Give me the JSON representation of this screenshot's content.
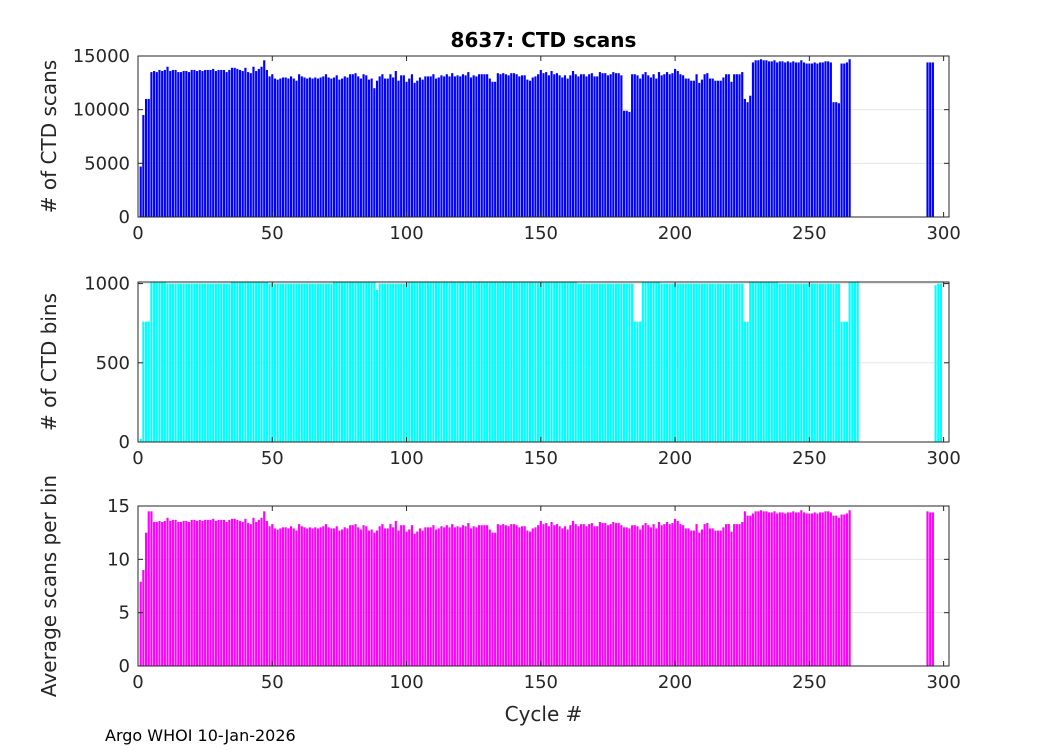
{
  "footer": "Argo WHOI 10-Jan-2026",
  "chart_data": [
    {
      "type": "bar",
      "title": "8637: CTD scans",
      "xlabel": "",
      "ylabel": "# of CTD scans",
      "xlim": [
        0,
        302
      ],
      "ylim": [
        0,
        15000
      ],
      "xticks": [
        0,
        50,
        100,
        150,
        200,
        250,
        300
      ],
      "yticks": [
        0,
        5000,
        10000,
        15000
      ],
      "color": "#0000ff",
      "grid": true,
      "cycles_start": 1,
      "values": [
        4700,
        9500,
        11000,
        11000,
        13500,
        13600,
        13500,
        13700,
        13600,
        13700,
        14000,
        13600,
        13700,
        13700,
        13500,
        13500,
        13600,
        13600,
        13500,
        13700,
        13700,
        13600,
        13700,
        13600,
        13700,
        13700,
        13700,
        13800,
        13600,
        13700,
        13700,
        13700,
        13500,
        13700,
        13900,
        13900,
        13800,
        13700,
        13600,
        13900,
        13500,
        13400,
        14000,
        13600,
        13800,
        14000,
        14600,
        13700,
        13100,
        13300,
        12900,
        12800,
        12900,
        13000,
        13000,
        12900,
        13100,
        12900,
        12700,
        13300,
        13100,
        13000,
        12900,
        13000,
        12900,
        13000,
        12900,
        13000,
        13100,
        13300,
        13000,
        12900,
        13000,
        13200,
        12800,
        12900,
        13100,
        13000,
        13300,
        13300,
        13400,
        13100,
        12900,
        13300,
        13200,
        12800,
        12900,
        12000,
        12700,
        13100,
        13300,
        12900,
        12900,
        13300,
        13000,
        13600,
        12700,
        13200,
        13200,
        12600,
        12900,
        13300,
        12500,
        12700,
        13000,
        12800,
        13100,
        13100,
        13100,
        13300,
        12900,
        13000,
        13200,
        13100,
        13300,
        13100,
        13400,
        13100,
        13200,
        13100,
        13300,
        13200,
        13500,
        13000,
        13200,
        13100,
        13300,
        13300,
        13300,
        13300,
        12900,
        12600,
        12600,
        13400,
        13300,
        13400,
        13300,
        13200,
        13400,
        13400,
        13300,
        13100,
        13200,
        13200,
        12800,
        12700,
        13000,
        13100,
        13300,
        13700,
        13400,
        13500,
        13200,
        13600,
        13300,
        13400,
        13200,
        13000,
        13200,
        12900,
        13200,
        13600,
        13300,
        13100,
        13300,
        13300,
        13100,
        13300,
        13400,
        13100,
        13100,
        13500,
        13400,
        13400,
        13200,
        13300,
        13500,
        13400,
        13400,
        13200,
        9900,
        9900,
        9800,
        13300,
        13300,
        13200,
        12900,
        13300,
        13500,
        13200,
        13000,
        13300,
        12900,
        13500,
        13200,
        13300,
        13500,
        13300,
        13400,
        13800,
        13600,
        13300,
        13200,
        12900,
        12900,
        12700,
        12700,
        13300,
        12500,
        12800,
        13300,
        13400,
        12900,
        12900,
        12700,
        12700,
        12700,
        13000,
        13300,
        13300,
        12600,
        13300,
        13300,
        13300,
        13500,
        11000,
        10700,
        11300,
        14400,
        14600,
        14600,
        14700,
        14600,
        14600,
        14500,
        14500,
        14600,
        14400,
        14500,
        14500,
        14400,
        14500,
        14400,
        14500,
        14400,
        14400,
        14600,
        14400,
        14300,
        14300,
        14300,
        14400,
        14300,
        14400,
        14400,
        14500,
        14500,
        14400,
        10700,
        10700,
        10600,
        14300,
        14300,
        14400,
        14700,
        null,
        null,
        null,
        null,
        null,
        null,
        null,
        null,
        null,
        null,
        null,
        null,
        null,
        null,
        null,
        null,
        null,
        null,
        null,
        null,
        null,
        null,
        null,
        null,
        null,
        null,
        null,
        null,
        14400,
        14400,
        14400
      ]
    },
    {
      "type": "bar",
      "title": "",
      "xlabel": "",
      "ylabel": "# of CTD bins",
      "xlim": [
        0,
        302
      ],
      "ylim": [
        0,
        1010
      ],
      "xticks": [
        0,
        50,
        100,
        150,
        200,
        250,
        300
      ],
      "yticks": [
        0,
        500,
        1000
      ],
      "color": "#00ffff",
      "grid": true,
      "cycles_start": 1,
      "values": [
        20,
        760,
        760,
        760,
        1010,
        1010,
        1010,
        1010,
        1010,
        1010,
        1000,
        1000,
        1000,
        1000,
        1000,
        1000,
        1000,
        1000,
        1000,
        1000,
        1000,
        1000,
        1000,
        1000,
        1000,
        1000,
        1000,
        1000,
        1000,
        1000,
        1000,
        1000,
        1000,
        1000,
        1010,
        1010,
        1010,
        1010,
        1010,
        1010,
        1010,
        1010,
        1010,
        1010,
        1010,
        1010,
        1010,
        1010,
        1000,
        1000,
        1000,
        1000,
        1000,
        1000,
        1000,
        1000,
        1000,
        1000,
        1000,
        1000,
        1000,
        1000,
        1000,
        1000,
        1000,
        1000,
        1000,
        1000,
        1000,
        1000,
        1000,
        1000,
        1010,
        1010,
        1010,
        1010,
        1010,
        1010,
        1010,
        1010,
        1010,
        1010,
        1010,
        1010,
        1010,
        1010,
        1010,
        1010,
        960,
        1000,
        1000,
        1000,
        1000,
        1000,
        1000,
        1000,
        1000,
        1000,
        1000,
        1000,
        1010,
        1010,
        1010,
        1010,
        1010,
        1010,
        1010,
        1010,
        1010,
        1010,
        1010,
        1010,
        1010,
        1010,
        1010,
        1010,
        1010,
        1010,
        1010,
        1010,
        1010,
        1010,
        1010,
        1010,
        1010,
        1010,
        1010,
        1010,
        1010,
        1010,
        1010,
        1010,
        1010,
        1010,
        1010,
        1010,
        1010,
        1010,
        1010,
        1010,
        1010,
        1010,
        1010,
        1010,
        1010,
        1010,
        1010,
        1010,
        1010,
        1010,
        1010,
        1010,
        1010,
        1010,
        1010,
        1010,
        1010,
        1010,
        1010,
        1010,
        1010,
        1010,
        1010,
        1000,
        1000,
        1000,
        1000,
        1000,
        1000,
        1000,
        1000,
        1000,
        1000,
        1000,
        1000,
        1000,
        1000,
        1000,
        1000,
        1000,
        1000,
        1000,
        1000,
        1000,
        760,
        760,
        760,
        1010,
        1010,
        1010,
        1010,
        1010,
        1010,
        1010,
        1000,
        1000,
        1000,
        1000,
        1000,
        1000,
        1000,
        1000,
        1000,
        1000,
        1000,
        1000,
        1000,
        1000,
        1000,
        1000,
        1000,
        1000,
        1000,
        1000,
        1000,
        1000,
        1000,
        1000,
        1000,
        1000,
        1000,
        1000,
        1000,
        1000,
        1000,
        760,
        760,
        1010,
        1010,
        1010,
        1010,
        1010,
        1010,
        1010,
        1010,
        1010,
        1010,
        1010,
        1000,
        1000,
        1000,
        1000,
        1000,
        1000,
        1000,
        1000,
        1000,
        1000,
        1000,
        1000,
        1000,
        1000,
        1000,
        1000,
        1000,
        1000,
        1000,
        1000,
        1000,
        1000,
        1000,
        760,
        760,
        760,
        1010,
        1010,
        1010,
        1010,
        null,
        null,
        null,
        null,
        null,
        null,
        null,
        null,
        null,
        null,
        null,
        null,
        null,
        null,
        null,
        null,
        null,
        null,
        null,
        null,
        null,
        null,
        null,
        null,
        null,
        null,
        null,
        null,
        990,
        1000,
        1000
      ]
    },
    {
      "type": "bar",
      "title": "",
      "xlabel": "Cycle #",
      "ylabel": "Average scans per bin",
      "xlim": [
        0,
        302
      ],
      "ylim": [
        0,
        15
      ],
      "xticks": [
        0,
        50,
        100,
        150,
        200,
        250,
        300
      ],
      "yticks": [
        0,
        5,
        10,
        15
      ],
      "color": "#ff00ff",
      "grid": true,
      "cycles_start": 1,
      "values": [
        7.9,
        9.0,
        12.5,
        14.5,
        14.5,
        13.5,
        13.5,
        13.6,
        13.5,
        13.6,
        13.9,
        13.6,
        13.7,
        13.7,
        13.5,
        13.5,
        13.6,
        13.6,
        13.5,
        13.7,
        13.7,
        13.6,
        13.7,
        13.6,
        13.7,
        13.7,
        13.7,
        13.8,
        13.6,
        13.7,
        13.7,
        13.7,
        13.5,
        13.7,
        13.8,
        13.8,
        13.7,
        13.6,
        13.5,
        13.8,
        13.4,
        13.3,
        13.9,
        13.5,
        13.7,
        13.9,
        14.5,
        13.6,
        13.1,
        13.3,
        12.9,
        12.8,
        12.9,
        13.0,
        13.0,
        12.9,
        13.1,
        12.9,
        12.7,
        13.3,
        13.1,
        13.0,
        12.9,
        13.0,
        12.9,
        13.0,
        12.9,
        13.0,
        13.1,
        13.3,
        13.0,
        12.9,
        12.9,
        13.1,
        12.7,
        12.8,
        13.0,
        12.9,
        13.2,
        13.2,
        13.3,
        13.0,
        12.8,
        13.2,
        13.1,
        12.7,
        12.8,
        12.5,
        12.7,
        13.1,
        13.3,
        12.9,
        12.9,
        13.3,
        13.0,
        13.6,
        12.7,
        13.2,
        13.2,
        12.6,
        12.8,
        13.2,
        12.4,
        12.6,
        12.9,
        12.7,
        13.0,
        13.0,
        13.0,
        13.2,
        12.8,
        12.9,
        13.1,
        13.0,
        13.2,
        13.0,
        13.3,
        13.0,
        13.1,
        13.0,
        13.2,
        13.1,
        13.4,
        12.9,
        13.1,
        13.0,
        13.2,
        13.2,
        13.2,
        13.2,
        12.8,
        12.5,
        12.5,
        13.3,
        13.2,
        13.3,
        13.2,
        13.1,
        13.3,
        13.3,
        13.2,
        13.0,
        13.1,
        13.1,
        12.7,
        12.6,
        12.9,
        13.0,
        13.2,
        13.6,
        13.3,
        13.4,
        13.1,
        13.5,
        13.2,
        13.3,
        13.1,
        12.9,
        13.1,
        12.8,
        13.2,
        13.6,
        13.3,
        13.1,
        13.3,
        13.3,
        13.1,
        13.3,
        13.4,
        13.1,
        13.1,
        13.5,
        13.4,
        13.4,
        13.2,
        13.3,
        13.5,
        13.4,
        13.4,
        13.2,
        13.0,
        13.0,
        12.9,
        13.2,
        13.2,
        13.1,
        12.8,
        13.2,
        13.4,
        13.2,
        13.0,
        13.3,
        12.9,
        13.5,
        13.2,
        13.3,
        13.5,
        13.3,
        13.4,
        13.8,
        13.6,
        13.3,
        13.2,
        12.9,
        12.9,
        12.7,
        12.7,
        13.3,
        12.5,
        12.8,
        13.3,
        13.4,
        12.9,
        12.9,
        12.7,
        12.7,
        12.7,
        13.0,
        13.3,
        13.3,
        12.6,
        13.3,
        13.3,
        13.3,
        13.5,
        14.5,
        14.1,
        14.1,
        14.3,
        14.5,
        14.5,
        14.6,
        14.5,
        14.5,
        14.4,
        14.4,
        14.5,
        14.3,
        14.4,
        14.4,
        14.3,
        14.4,
        14.4,
        14.5,
        14.4,
        14.4,
        14.6,
        14.4,
        14.3,
        14.3,
        14.3,
        14.4,
        14.3,
        14.4,
        14.4,
        14.5,
        14.5,
        14.4,
        14.1,
        14.1,
        13.9,
        14.2,
        14.2,
        14.3,
        14.6,
        null,
        null,
        null,
        null,
        null,
        null,
        null,
        null,
        null,
        null,
        null,
        null,
        null,
        null,
        null,
        null,
        null,
        null,
        null,
        null,
        null,
        null,
        null,
        null,
        null,
        null,
        null,
        null,
        14.5,
        14.4,
        14.4
      ]
    }
  ]
}
